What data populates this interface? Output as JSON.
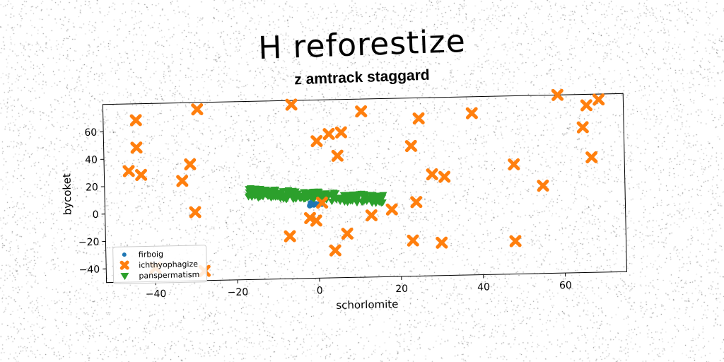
{
  "chart_data": {
    "type": "scatter",
    "title": "H reforestize",
    "subtitle": "z amtrack staggard",
    "xlabel": "schorlomite",
    "ylabel": "bycoket",
    "xlim": [
      -52,
      75
    ],
    "ylim": [
      -50,
      80
    ],
    "xticks": [
      -40,
      -20,
      0,
      20,
      40,
      60
    ],
    "yticks": [
      -40,
      -20,
      0,
      20,
      40,
      60
    ],
    "grid": false,
    "legend_position": "lower-left",
    "series": [
      {
        "name": "firboig",
        "marker": "circle",
        "color": "#1f77b4",
        "points": [
          [
            -2,
            3
          ],
          [
            -1.5,
            4
          ],
          [
            -1,
            3.5
          ],
          [
            -0.5,
            4.2
          ],
          [
            0,
            3.8
          ],
          [
            0.5,
            4.5
          ],
          [
            1,
            4
          ],
          [
            -1.8,
            5
          ]
        ]
      },
      {
        "name": "ichthyophagize",
        "marker": "x",
        "color": "#ff7f0e",
        "points": [
          [
            -44,
            68
          ],
          [
            -29,
            75
          ],
          [
            -6,
            77
          ],
          [
            11,
            71
          ],
          [
            25,
            65
          ],
          [
            38,
            68
          ],
          [
            59,
            80
          ],
          [
            66,
            72
          ],
          [
            69,
            76
          ],
          [
            -44,
            48
          ],
          [
            0,
            50
          ],
          [
            3,
            55
          ],
          [
            6,
            56
          ],
          [
            23,
            45
          ],
          [
            65,
            56
          ],
          [
            -46,
            31
          ],
          [
            -43,
            28
          ],
          [
            -31,
            35
          ],
          [
            -33,
            23
          ],
          [
            5,
            39
          ],
          [
            48,
            30
          ],
          [
            67,
            34
          ],
          [
            28,
            24
          ],
          [
            31,
            22
          ],
          [
            55,
            14
          ],
          [
            -30,
            0
          ],
          [
            1,
            5
          ],
          [
            18,
            -1
          ],
          [
            24,
            4
          ],
          [
            -2,
            -6
          ],
          [
            -0.5,
            -8
          ],
          [
            13,
            -5
          ],
          [
            -7,
            -19
          ],
          [
            7,
            -18
          ],
          [
            23,
            -24
          ],
          [
            30,
            -26
          ],
          [
            48,
            -26
          ],
          [
            4,
            -30
          ],
          [
            -40,
            -40
          ],
          [
            -28,
            -43
          ]
        ]
      },
      {
        "name": "panspermatism",
        "marker": "triangle-down",
        "color": "#2ca02c",
        "cloud": {
          "x_from": -17,
          "x_to": 16,
          "y_top_from": 17,
          "y_top_to": 10,
          "y_bottom_from": 10,
          "y_bottom_to": 3
        }
      }
    ]
  }
}
